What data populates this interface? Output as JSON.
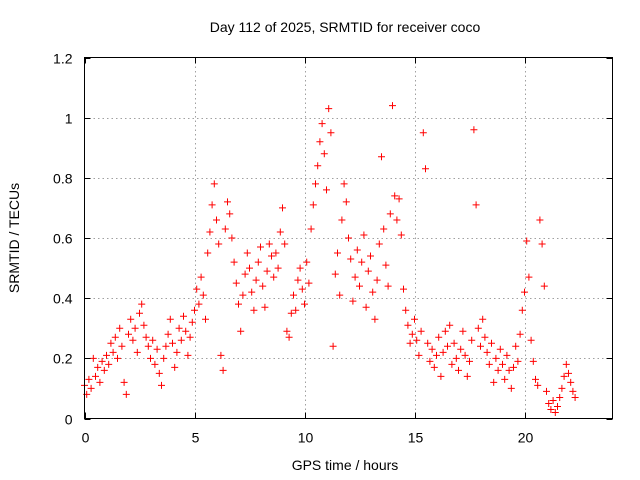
{
  "chart_data": {
    "type": "scatter",
    "title": "Day 112 of 2025, SRMTID for receiver coco",
    "xlabel": "GPS time / hours",
    "ylabel": "SRMTID / TECUs",
    "xlim": [
      0,
      24
    ],
    "ylim": [
      0,
      1.2
    ],
    "xticks": [
      0,
      5,
      10,
      15,
      20
    ],
    "xtick_labels": [
      "0",
      "5",
      "10",
      "15",
      "20"
    ],
    "yticks": [
      0,
      0.2,
      0.4,
      0.6,
      0.8,
      1.0,
      1.2
    ],
    "ytick_labels": [
      "0",
      "0.2",
      "0.4",
      "0.6",
      "0.8",
      "1",
      "1.2"
    ],
    "grid": true,
    "marker": "+",
    "color": "#ff0000",
    "series": [
      {
        "name": "SRMTID",
        "points": [
          [
            0.0,
            0.11
          ],
          [
            0.1,
            0.08
          ],
          [
            0.2,
            0.13
          ],
          [
            0.3,
            0.1
          ],
          [
            0.4,
            0.2
          ],
          [
            0.5,
            0.14
          ],
          [
            0.6,
            0.17
          ],
          [
            0.7,
            0.12
          ],
          [
            0.8,
            0.19
          ],
          [
            0.9,
            0.16
          ],
          [
            1.0,
            0.21
          ],
          [
            1.1,
            0.18
          ],
          [
            1.2,
            0.25
          ],
          [
            1.3,
            0.22
          ],
          [
            1.4,
            0.27
          ],
          [
            1.5,
            0.2
          ],
          [
            1.6,
            0.3
          ],
          [
            1.7,
            0.24
          ],
          [
            1.8,
            0.12
          ],
          [
            1.9,
            0.08
          ],
          [
            2.0,
            0.28
          ],
          [
            2.1,
            0.33
          ],
          [
            2.2,
            0.26
          ],
          [
            2.3,
            0.3
          ],
          [
            2.4,
            0.22
          ],
          [
            2.5,
            0.35
          ],
          [
            2.6,
            0.38
          ],
          [
            2.7,
            0.31
          ],
          [
            2.8,
            0.27
          ],
          [
            2.9,
            0.24
          ],
          [
            3.0,
            0.2
          ],
          [
            3.1,
            0.26
          ],
          [
            3.2,
            0.18
          ],
          [
            3.3,
            0.23
          ],
          [
            3.4,
            0.15
          ],
          [
            3.5,
            0.11
          ],
          [
            3.6,
            0.2
          ],
          [
            3.7,
            0.24
          ],
          [
            3.8,
            0.28
          ],
          [
            3.9,
            0.33
          ],
          [
            4.0,
            0.25
          ],
          [
            4.1,
            0.17
          ],
          [
            4.2,
            0.22
          ],
          [
            4.3,
            0.3
          ],
          [
            4.4,
            0.26
          ],
          [
            4.5,
            0.34
          ],
          [
            4.6,
            0.29
          ],
          [
            4.7,
            0.21
          ],
          [
            4.8,
            0.27
          ],
          [
            4.9,
            0.32
          ],
          [
            5.0,
            0.36
          ],
          [
            5.1,
            0.43
          ],
          [
            5.2,
            0.38
          ],
          [
            5.3,
            0.47
          ],
          [
            5.4,
            0.41
          ],
          [
            5.5,
            0.33
          ],
          [
            5.6,
            0.55
          ],
          [
            5.7,
            0.62
          ],
          [
            5.8,
            0.71
          ],
          [
            5.9,
            0.78
          ],
          [
            6.0,
            0.66
          ],
          [
            6.1,
            0.58
          ],
          [
            6.2,
            0.21
          ],
          [
            6.3,
            0.16
          ],
          [
            6.4,
            0.63
          ],
          [
            6.5,
            0.72
          ],
          [
            6.6,
            0.68
          ],
          [
            6.7,
            0.6
          ],
          [
            6.8,
            0.52
          ],
          [
            6.9,
            0.45
          ],
          [
            7.0,
            0.38
          ],
          [
            7.1,
            0.29
          ],
          [
            7.2,
            0.41
          ],
          [
            7.3,
            0.48
          ],
          [
            7.4,
            0.55
          ],
          [
            7.5,
            0.5
          ],
          [
            7.6,
            0.42
          ],
          [
            7.7,
            0.36
          ],
          [
            7.8,
            0.46
          ],
          [
            7.9,
            0.52
          ],
          [
            8.0,
            0.57
          ],
          [
            8.1,
            0.44
          ],
          [
            8.2,
            0.37
          ],
          [
            8.3,
            0.49
          ],
          [
            8.4,
            0.58
          ],
          [
            8.5,
            0.54
          ],
          [
            8.6,
            0.47
          ],
          [
            8.7,
            0.55
          ],
          [
            8.8,
            0.5
          ],
          [
            8.9,
            0.62
          ],
          [
            9.0,
            0.7
          ],
          [
            9.1,
            0.58
          ],
          [
            9.2,
            0.29
          ],
          [
            9.3,
            0.27
          ],
          [
            9.4,
            0.35
          ],
          [
            9.5,
            0.41
          ],
          [
            9.6,
            0.36
          ],
          [
            9.7,
            0.46
          ],
          [
            9.8,
            0.5
          ],
          [
            9.9,
            0.43
          ],
          [
            10.0,
            0.38
          ],
          [
            10.1,
            0.52
          ],
          [
            10.2,
            0.45
          ],
          [
            10.3,
            0.63
          ],
          [
            10.4,
            0.71
          ],
          [
            10.5,
            0.78
          ],
          [
            10.6,
            0.84
          ],
          [
            10.7,
            0.92
          ],
          [
            10.8,
            0.98
          ],
          [
            10.9,
            0.88
          ],
          [
            11.0,
            0.76
          ],
          [
            11.1,
            1.03
          ],
          [
            11.2,
            0.95
          ],
          [
            11.3,
            0.24
          ],
          [
            11.4,
            0.48
          ],
          [
            11.5,
            0.55
          ],
          [
            11.6,
            0.41
          ],
          [
            11.7,
            0.66
          ],
          [
            11.8,
            0.78
          ],
          [
            11.9,
            0.72
          ],
          [
            12.0,
            0.6
          ],
          [
            12.1,
            0.53
          ],
          [
            12.2,
            0.39
          ],
          [
            12.3,
            0.47
          ],
          [
            12.4,
            0.56
          ],
          [
            12.5,
            0.44
          ],
          [
            12.6,
            0.52
          ],
          [
            12.7,
            0.61
          ],
          [
            12.8,
            0.37
          ],
          [
            12.9,
            0.49
          ],
          [
            13.0,
            0.54
          ],
          [
            13.1,
            0.42
          ],
          [
            13.2,
            0.33
          ],
          [
            13.3,
            0.46
          ],
          [
            13.4,
            0.58
          ],
          [
            13.5,
            0.87
          ],
          [
            13.6,
            0.63
          ],
          [
            13.7,
            0.51
          ],
          [
            13.8,
            0.44
          ],
          [
            13.9,
            0.68
          ],
          [
            14.0,
            1.04
          ],
          [
            14.1,
            0.74
          ],
          [
            14.2,
            0.66
          ],
          [
            14.3,
            0.73
          ],
          [
            14.4,
            0.61
          ],
          [
            14.5,
            0.43
          ],
          [
            14.6,
            0.36
          ],
          [
            14.7,
            0.31
          ],
          [
            14.8,
            0.25
          ],
          [
            14.9,
            0.28
          ],
          [
            15.0,
            0.33
          ],
          [
            15.1,
            0.26
          ],
          [
            15.2,
            0.21
          ],
          [
            15.3,
            0.29
          ],
          [
            15.4,
            0.95
          ],
          [
            15.5,
            0.83
          ],
          [
            15.6,
            0.25
          ],
          [
            15.7,
            0.19
          ],
          [
            15.8,
            0.23
          ],
          [
            15.9,
            0.17
          ],
          [
            16.0,
            0.21
          ],
          [
            16.1,
            0.27
          ],
          [
            16.2,
            0.14
          ],
          [
            16.3,
            0.22
          ],
          [
            16.4,
            0.29
          ],
          [
            16.5,
            0.24
          ],
          [
            16.6,
            0.31
          ],
          [
            16.7,
            0.18
          ],
          [
            16.8,
            0.25
          ],
          [
            16.9,
            0.2
          ],
          [
            17.0,
            0.16
          ],
          [
            17.1,
            0.23
          ],
          [
            17.2,
            0.29
          ],
          [
            17.3,
            0.21
          ],
          [
            17.4,
            0.14
          ],
          [
            17.5,
            0.19
          ],
          [
            17.6,
            0.26
          ],
          [
            17.7,
            0.96
          ],
          [
            17.8,
            0.71
          ],
          [
            17.9,
            0.3
          ],
          [
            18.0,
            0.24
          ],
          [
            18.1,
            0.33
          ],
          [
            18.2,
            0.27
          ],
          [
            18.3,
            0.22
          ],
          [
            18.4,
            0.18
          ],
          [
            18.5,
            0.25
          ],
          [
            18.6,
            0.12
          ],
          [
            18.7,
            0.2
          ],
          [
            18.8,
            0.16
          ],
          [
            18.9,
            0.23
          ],
          [
            19.0,
            0.18
          ],
          [
            19.1,
            0.13
          ],
          [
            19.2,
            0.21
          ],
          [
            19.3,
            0.16
          ],
          [
            19.4,
            0.1
          ],
          [
            19.5,
            0.17
          ],
          [
            19.6,
            0.24
          ],
          [
            19.7,
            0.19
          ],
          [
            19.8,
            0.28
          ],
          [
            19.9,
            0.36
          ],
          [
            20.0,
            0.42
          ],
          [
            20.1,
            0.59
          ],
          [
            20.2,
            0.47
          ],
          [
            20.3,
            0.26
          ],
          [
            20.4,
            0.19
          ],
          [
            20.5,
            0.13
          ],
          [
            20.6,
            0.11
          ],
          [
            20.7,
            0.66
          ],
          [
            20.8,
            0.58
          ],
          [
            20.9,
            0.44
          ],
          [
            21.0,
            0.09
          ],
          [
            21.1,
            0.05
          ],
          [
            21.2,
            0.03
          ],
          [
            21.3,
            0.06
          ],
          [
            21.4,
            0.02
          ],
          [
            21.5,
            0.04
          ],
          [
            21.6,
            0.07
          ],
          [
            21.7,
            0.1
          ],
          [
            21.8,
            0.14
          ],
          [
            21.9,
            0.18
          ],
          [
            22.0,
            0.15
          ],
          [
            22.1,
            0.12
          ],
          [
            22.2,
            0.09
          ],
          [
            22.3,
            0.07
          ]
        ]
      }
    ]
  }
}
